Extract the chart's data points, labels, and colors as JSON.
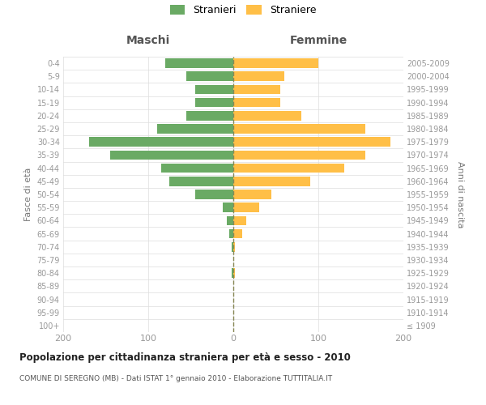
{
  "age_groups": [
    "100+",
    "95-99",
    "90-94",
    "85-89",
    "80-84",
    "75-79",
    "70-74",
    "65-69",
    "60-64",
    "55-59",
    "50-54",
    "45-49",
    "40-44",
    "35-39",
    "30-34",
    "25-29",
    "20-24",
    "15-19",
    "10-14",
    "5-9",
    "0-4"
  ],
  "birth_years": [
    "≤ 1909",
    "1910-1914",
    "1915-1919",
    "1920-1924",
    "1925-1929",
    "1930-1934",
    "1935-1939",
    "1940-1944",
    "1945-1949",
    "1950-1954",
    "1955-1959",
    "1960-1964",
    "1965-1969",
    "1970-1974",
    "1975-1979",
    "1980-1984",
    "1985-1989",
    "1990-1994",
    "1995-1999",
    "2000-2004",
    "2005-2009"
  ],
  "males": [
    0,
    0,
    0,
    0,
    2,
    0,
    2,
    5,
    8,
    12,
    45,
    75,
    85,
    145,
    170,
    90,
    55,
    45,
    45,
    55,
    80
  ],
  "females": [
    0,
    0,
    0,
    0,
    2,
    0,
    2,
    10,
    15,
    30,
    45,
    90,
    130,
    155,
    185,
    155,
    80,
    55,
    55,
    60,
    100
  ],
  "male_color": "#6aaa64",
  "female_color": "#ffbf47",
  "title": "Popolazione per cittadinanza straniera per età e sesso - 2010",
  "subtitle": "COMUNE DI SEREGNO (MB) - Dati ISTAT 1° gennaio 2010 - Elaborazione TUTTITALIA.IT",
  "header_left": "Maschi",
  "header_right": "Femmine",
  "ylabel_left": "Fasce di età",
  "ylabel_right": "Anni di nascita",
  "legend_males": "Stranieri",
  "legend_females": "Straniere",
  "xlim": 200,
  "background_color": "#ffffff",
  "grid_color": "#dddddd",
  "tick_color": "#999999",
  "label_color": "#777777",
  "header_color": "#555555",
  "title_color": "#222222",
  "subtitle_color": "#555555"
}
